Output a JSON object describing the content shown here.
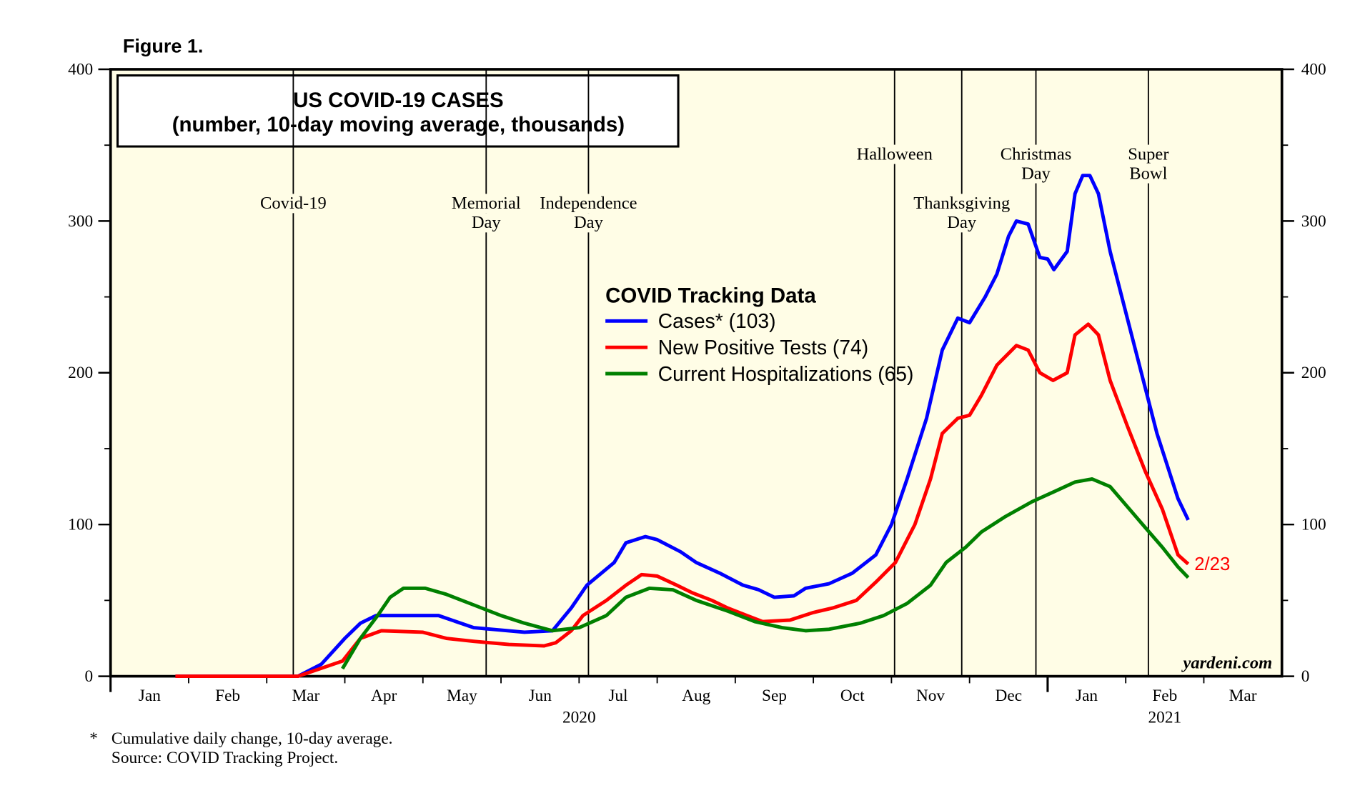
{
  "chart_data": {
    "type": "line",
    "figure_label": "Figure 1.",
    "title_lines": [
      "US COVID-19 CASES",
      "(number, 10-day moving average, thousands)"
    ],
    "legend_title": "COVID Tracking Data",
    "xlim": [
      0,
      15
    ],
    "xticks": [
      {
        "value": 0.5,
        "label": "Jan"
      },
      {
        "value": 1.5,
        "label": "Feb"
      },
      {
        "value": 2.5,
        "label": "Mar"
      },
      {
        "value": 3.5,
        "label": "Apr"
      },
      {
        "value": 4.5,
        "label": "May"
      },
      {
        "value": 5.5,
        "label": "Jun"
      },
      {
        "value": 6.5,
        "label": "Jul"
      },
      {
        "value": 7.5,
        "label": "Aug"
      },
      {
        "value": 8.5,
        "label": "Sep"
      },
      {
        "value": 9.5,
        "label": "Oct"
      },
      {
        "value": 10.5,
        "label": "Nov"
      },
      {
        "value": 11.5,
        "label": "Dec"
      },
      {
        "value": 12.5,
        "label": "Jan"
      },
      {
        "value": 13.5,
        "label": "Feb"
      },
      {
        "value": 14.5,
        "label": "Mar"
      }
    ],
    "years": [
      "2020",
      "2021"
    ],
    "ylim": [
      0,
      400
    ],
    "yticks": [
      0,
      100,
      200,
      300,
      400
    ],
    "events": [
      {
        "x": 2.34,
        "lines": [
          "Covid-19"
        ]
      },
      {
        "x": 4.81,
        "lines": [
          "Memorial",
          "Day"
        ]
      },
      {
        "x": 6.12,
        "lines": [
          "Independence",
          "Day"
        ]
      },
      {
        "x": 10.04,
        "lines": [
          "Halloween"
        ]
      },
      {
        "x": 10.9,
        "lines": [
          "Thanksgiving",
          "Day"
        ]
      },
      {
        "x": 11.85,
        "lines": [
          "Christmas",
          "Day"
        ]
      },
      {
        "x": 13.29,
        "lines": [
          "Super",
          "Bowl"
        ]
      }
    ],
    "series": [
      {
        "name": "Cases* (103)",
        "color": "#0000ff",
        "x": [
          0.83,
          2.4,
          2.7,
          3.0,
          3.2,
          3.4,
          4.2,
          4.65,
          5.3,
          5.66,
          5.9,
          6.1,
          6.45,
          6.6,
          6.85,
          7.0,
          7.3,
          7.5,
          7.8,
          8.1,
          8.3,
          8.5,
          8.75,
          8.9,
          9.2,
          9.5,
          9.8,
          10.0,
          10.2,
          10.45,
          10.65,
          10.85,
          11.0,
          11.2,
          11.35,
          11.5,
          11.6,
          11.75,
          11.9,
          12.0,
          12.08,
          12.25,
          12.35,
          12.45,
          12.54,
          12.65,
          12.8,
          13.0,
          13.2,
          13.4,
          13.67,
          13.8
        ],
        "values": [
          0,
          0,
          8,
          25,
          35,
          40,
          40,
          32,
          29,
          30,
          45,
          60,
          75,
          88,
          92,
          90,
          82,
          75,
          68,
          60,
          57,
          52,
          53,
          58,
          61,
          68,
          80,
          100,
          130,
          170,
          215,
          236,
          233,
          250,
          265,
          290,
          300,
          298,
          276,
          275,
          268,
          280,
          318,
          330,
          330,
          318,
          280,
          240,
          200,
          160,
          117,
          103
        ]
      },
      {
        "name": "New Positive Tests (74)",
        "color": "#ff0000",
        "x": [
          0.83,
          2.4,
          2.97,
          3.2,
          3.47,
          4.0,
          4.3,
          4.65,
          5.1,
          5.55,
          5.7,
          5.9,
          6.05,
          6.35,
          6.6,
          6.8,
          7.0,
          7.25,
          7.45,
          7.7,
          7.9,
          8.15,
          8.35,
          8.7,
          9.0,
          9.25,
          9.55,
          9.8,
          10.05,
          10.3,
          10.5,
          10.65,
          10.85,
          11.0,
          11.15,
          11.35,
          11.6,
          11.75,
          11.9,
          12.07,
          12.25,
          12.35,
          12.52,
          12.65,
          12.8,
          13.02,
          13.25,
          13.47,
          13.67,
          13.8
        ],
        "values": [
          0,
          0,
          10,
          25,
          30,
          29,
          25,
          23,
          21,
          20,
          22,
          30,
          40,
          50,
          60,
          67,
          66,
          60,
          55,
          50,
          45,
          40,
          36,
          37,
          42,
          45,
          50,
          62,
          75,
          100,
          130,
          160,
          170,
          172,
          185,
          205,
          218,
          215,
          200,
          195,
          200,
          225,
          232,
          225,
          195,
          165,
          135,
          110,
          80,
          74
        ]
      },
      {
        "name": "Current Hospitalizations (65)",
        "color": "#008000",
        "x": [
          2.97,
          3.2,
          3.42,
          3.58,
          3.75,
          4.03,
          4.3,
          4.65,
          5.0,
          5.3,
          5.66,
          6.0,
          6.35,
          6.6,
          6.9,
          7.2,
          7.5,
          7.9,
          8.25,
          8.6,
          8.9,
          9.2,
          9.6,
          9.9,
          10.2,
          10.5,
          10.7,
          10.95,
          11.15,
          11.45,
          11.8,
          12.1,
          12.35,
          12.57,
          12.8,
          13.0,
          13.25,
          13.47,
          13.67,
          13.8
        ],
        "values": [
          5,
          25,
          40,
          52,
          58,
          58,
          54,
          47,
          40,
          35,
          30,
          32,
          40,
          52,
          58,
          57,
          50,
          43,
          36,
          32,
          30,
          31,
          35,
          40,
          48,
          60,
          75,
          85,
          95,
          105,
          115,
          122,
          128,
          130,
          125,
          113,
          98,
          85,
          72,
          65
        ]
      }
    ],
    "end_label": "2/23",
    "watermark": "yardeni.com",
    "footnotes": [
      "*",
      "Cumulative daily change, 10-day average.",
      "Source: COVID Tracking Project."
    ]
  }
}
